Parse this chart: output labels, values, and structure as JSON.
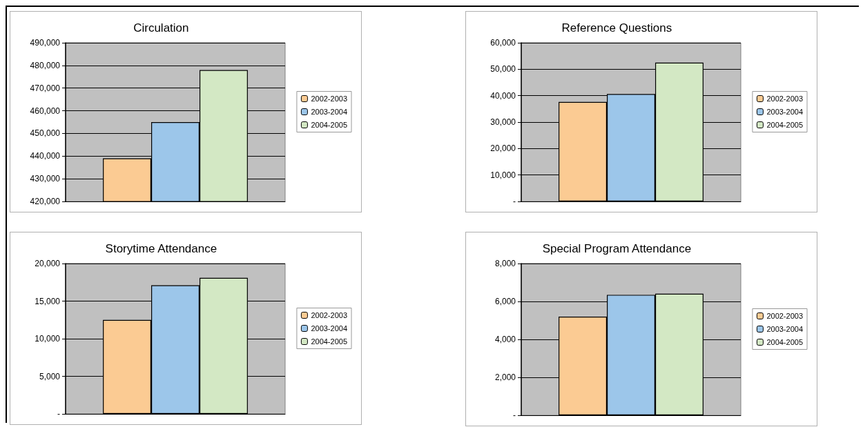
{
  "chart_data": [
    {
      "type": "bar",
      "title": "Circulation",
      "categories": [
        null
      ],
      "series": [
        {
          "name": "2002-2003",
          "color": "#fbcb93",
          "values": [
            439000
          ]
        },
        {
          "name": "2003-2004",
          "color": "#9cc6ea",
          "values": [
            455000
          ]
        },
        {
          "name": "2004-2005",
          "color": "#d3e8c4",
          "values": [
            478000
          ]
        }
      ],
      "ylim": [
        420000,
        490000
      ],
      "yticks": [
        {
          "value": 420000,
          "label": "420,000"
        },
        {
          "value": 430000,
          "label": "430,000"
        },
        {
          "value": 440000,
          "label": "440,000"
        },
        {
          "value": 450000,
          "label": "450,000"
        },
        {
          "value": 460000,
          "label": "460,000"
        },
        {
          "value": 470000,
          "label": "470,000"
        },
        {
          "value": 480000,
          "label": "480,000"
        },
        {
          "value": 490000,
          "label": "490,000"
        }
      ],
      "grid": "y",
      "legend": "right"
    },
    {
      "type": "bar",
      "title": "Reference Questions",
      "categories": [
        null
      ],
      "series": [
        {
          "name": "2002-2003",
          "color": "#fbcb93",
          "values": [
            37600
          ]
        },
        {
          "name": "2003-2004",
          "color": "#9cc6ea",
          "values": [
            40600
          ]
        },
        {
          "name": "2004-2005",
          "color": "#d3e8c4",
          "values": [
            52500
          ]
        }
      ],
      "ylim": [
        0,
        60000
      ],
      "yticks": [
        {
          "value": 0,
          "label": "-"
        },
        {
          "value": 10000,
          "label": "10,000"
        },
        {
          "value": 20000,
          "label": "20,000"
        },
        {
          "value": 30000,
          "label": "30,000"
        },
        {
          "value": 40000,
          "label": "40,000"
        },
        {
          "value": 50000,
          "label": "50,000"
        },
        {
          "value": 60000,
          "label": "60,000"
        }
      ],
      "grid": "y",
      "legend": "right"
    },
    {
      "type": "bar",
      "title": "Storytime Attendance",
      "categories": [
        null
      ],
      "series": [
        {
          "name": "2002-2003",
          "color": "#fbcb93",
          "values": [
            12500
          ]
        },
        {
          "name": "2003-2004",
          "color": "#9cc6ea",
          "values": [
            17100
          ]
        },
        {
          "name": "2004-2005",
          "color": "#d3e8c4",
          "values": [
            18100
          ]
        }
      ],
      "ylim": [
        0,
        20000
      ],
      "yticks": [
        {
          "value": 0,
          "label": "-"
        },
        {
          "value": 5000,
          "label": "5,000"
        },
        {
          "value": 10000,
          "label": "10,000"
        },
        {
          "value": 15000,
          "label": "15,000"
        },
        {
          "value": 20000,
          "label": "20,000"
        }
      ],
      "grid": "y",
      "legend": "right"
    },
    {
      "type": "bar",
      "title": "Special Program Attendance",
      "categories": [
        null
      ],
      "series": [
        {
          "name": "2002-2003",
          "color": "#fbcb93",
          "values": [
            5200
          ]
        },
        {
          "name": "2003-2004",
          "color": "#9cc6ea",
          "values": [
            6350
          ]
        },
        {
          "name": "2004-2005",
          "color": "#d3e8c4",
          "values": [
            6410
          ]
        }
      ],
      "ylim": [
        0,
        8000
      ],
      "yticks": [
        {
          "value": 0,
          "label": "-"
        },
        {
          "value": 2000,
          "label": "2,000"
        },
        {
          "value": 4000,
          "label": "4,000"
        },
        {
          "value": 6000,
          "label": "6,000"
        },
        {
          "value": 8000,
          "label": "8,000"
        }
      ],
      "grid": "y",
      "legend": "right"
    }
  ]
}
